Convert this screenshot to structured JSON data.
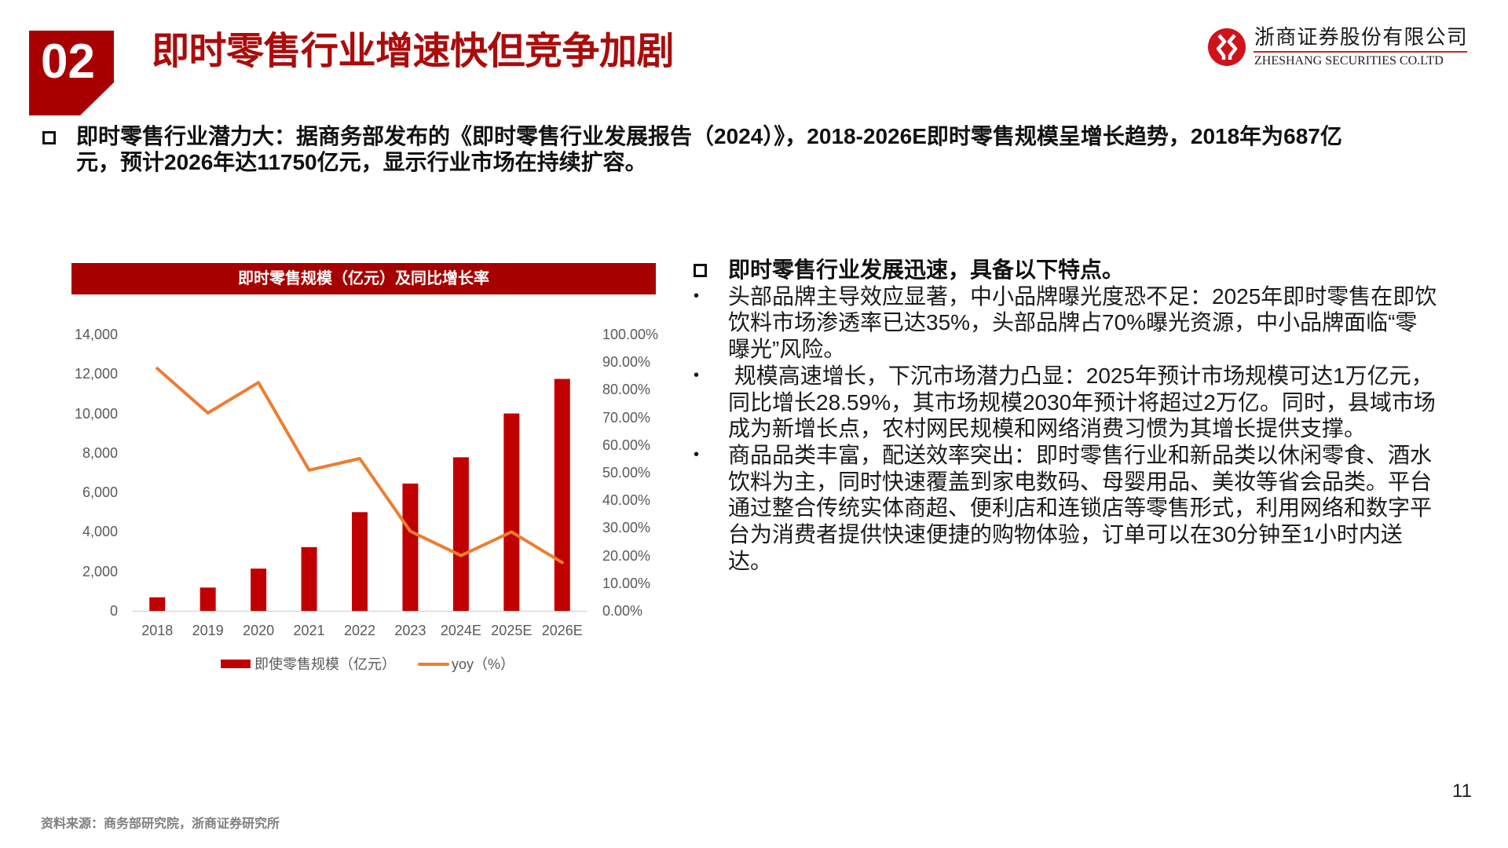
{
  "header": {
    "section_number": "02",
    "title": "即时零售行业增速快但竞争加剧",
    "logo": {
      "icon": "zheshang-securities-logo-icon",
      "name_cn": "浙商证券股份有限公司",
      "name_en": "ZHESHANG SECURITIES CO.LTD"
    }
  },
  "intro": {
    "bullet_icon": "square-bullet-icon",
    "lines": [
      "即时零售行业潜力大：据商务部发布的《即时零售行业发展报告（2024）》，2018-2026E即时零售规模呈增长趋势，2018年为687亿",
      "元，预计2026年达11750亿元，显示行业市场在持续扩容。"
    ]
  },
  "chart_data": {
    "type": "bar",
    "combo": "bar+line (dual axis)",
    "title": "即时零售规模（亿元）及同比增长率",
    "xlabel": "",
    "ylabel": "",
    "categories": [
      "2018",
      "2019",
      "2020",
      "2021",
      "2022",
      "2023",
      "2024E",
      "2025E",
      "2026E"
    ],
    "series": [
      {
        "name": "即使零售规模（亿元）",
        "type": "bar",
        "axis": "left",
        "color": "#C00000",
        "values": [
          687,
          1180,
          2140,
          3230,
          5000,
          6450,
          7780,
          10000,
          11750
        ]
      },
      {
        "name": "yoy（%）",
        "type": "line",
        "axis": "right",
        "color": "#ED7D31",
        "values": [
          87.7,
          71.6,
          82.6,
          50.9,
          55.1,
          28.8,
          20.0,
          28.59,
          17.5
        ]
      }
    ],
    "y_left": {
      "min": 0,
      "max": 14000,
      "ticks": [
        "0",
        "2,000",
        "4,000",
        "6,000",
        "8,000",
        "10,000",
        "12,000",
        "14,000"
      ]
    },
    "y_right": {
      "min": 0,
      "max": 100,
      "unit": "%",
      "ticks": [
        "0.00%",
        "10.00%",
        "20.00%",
        "30.00%",
        "40.00%",
        "50.00%",
        "60.00%",
        "70.00%",
        "80.00%",
        "90.00%",
        "100.00%"
      ]
    },
    "grid": false,
    "legend_position": "bottom"
  },
  "features": {
    "bullet_icon": "square-bullet-icon",
    "heading": "即时零售行业发展迅速，具备以下特点。",
    "bullet_glyph": "•",
    "bullets": [
      {
        "lines": [
          "头部品牌主导效应显著，中小品牌曝光度恐不足：2025年即时零售在即饮",
          "饮料市场渗透率已达35%，头部品牌占70%曝光资源，中小品牌面临“零",
          "曝光”风险。"
        ]
      },
      {
        "lines": [
          " 规模高速增长，下沉市场潜力凸显：2025年预计市场规模可达1万亿元，",
          "同比增长28.59%，其市场规模2030年预计将超过2万亿。同时，县域市场",
          "成为新增长点，农村网民规模和网络消费习惯为其增长提供支撑。"
        ]
      },
      {
        "lines": [
          "商品品类丰富，配送效率突出：即时零售行业和新品类以休闲零食、酒水",
          "饮料为主，同时快速覆盖到家电数码、母婴用品、美妆等省会品类。平台",
          "通过整合传统实体商超、便利店和连锁店等零售形式，利用网络和数字平",
          "台为消费者提供快速便捷的购物体验，订单可以在30分钟至1小时内送",
          "达。"
        ]
      }
    ]
  },
  "footer": {
    "source": "资料来源：商务部研究院，浙商证券研究所",
    "page_number": "11"
  },
  "colors": {
    "badge_red": "#A80000",
    "title_red": "#AB0B0B",
    "chart_title_bar": "#A60000",
    "bar_red": "#C00000",
    "line_orange": "#ED7D31",
    "axis_text": "#595959",
    "footnote_gray": "#7F7F7F",
    "logo_red": "#D0121B"
  }
}
